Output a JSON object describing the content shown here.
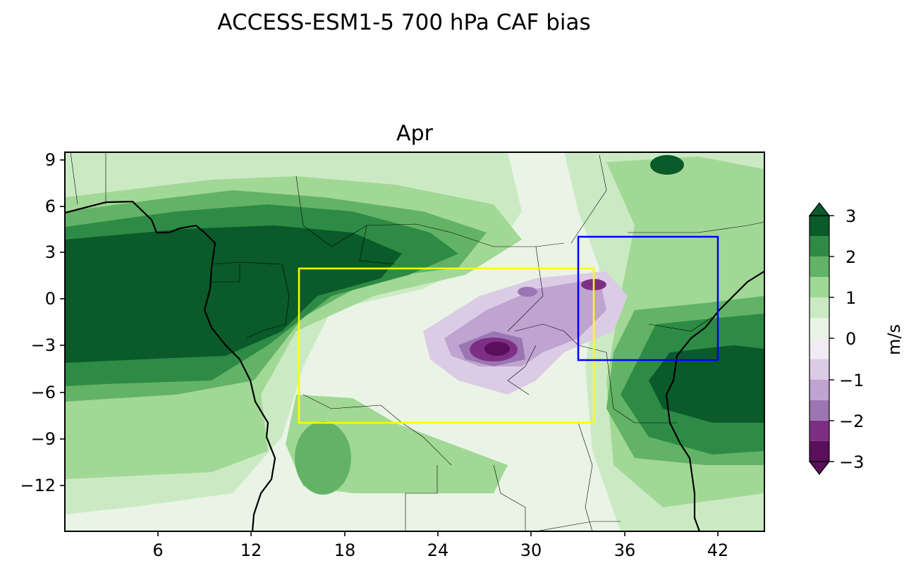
{
  "figure": {
    "suptitle": "ACCESS-ESM1-5 700 hPa CAF bias"
  },
  "panel": {
    "title": "Apr",
    "x_ticks": [
      "6",
      "12",
      "18",
      "24",
      "30",
      "36",
      "42"
    ],
    "y_ticks": [
      "9",
      "6",
      "3",
      "0",
      "−3",
      "−6",
      "−9",
      "−12"
    ]
  },
  "map_extent": {
    "lon": [
      0,
      45
    ],
    "lat": [
      -15,
      9.5
    ]
  },
  "boxes": [
    {
      "color": "#ffff00",
      "lon": [
        15,
        34
      ],
      "lat": [
        -8,
        2
      ]
    },
    {
      "color": "#0000ff",
      "lon": [
        33,
        42
      ],
      "lat": [
        -4,
        4
      ]
    }
  ],
  "colorbar": {
    "label": "m/s",
    "ticks": [
      "3",
      "2",
      "1",
      "0",
      "−1",
      "−2",
      "−3"
    ],
    "levels": [
      -3,
      -2.5,
      -2,
      -1.5,
      -1,
      -0.5,
      0,
      0.5,
      1,
      1.5,
      2,
      2.5,
      3
    ],
    "colors": [
      "#5a0f5c",
      "#7e2f85",
      "#9b76b3",
      "#bfa3d0",
      "#dccbe5",
      "#f1ebf3",
      "#e9f4e6",
      "#cbeac4",
      "#a2d895",
      "#63b366",
      "#2e8b45",
      "#0a5a2a"
    ]
  }
}
